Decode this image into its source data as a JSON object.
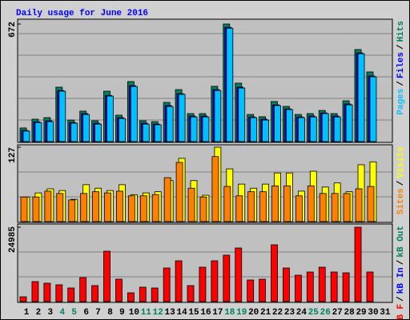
{
  "chart_data": {
    "type": "bar",
    "title": "Daily usage for June 2016",
    "legend_separator": "/",
    "categories": [
      "1",
      "2",
      "3",
      "4",
      "5",
      "6",
      "7",
      "8",
      "9",
      "10",
      "11",
      "12",
      "13",
      "14",
      "15",
      "16",
      "17",
      "18",
      "19",
      "20",
      "21",
      "22",
      "23",
      "24",
      "25",
      "26",
      "27",
      "28",
      "29",
      "30",
      "31"
    ],
    "category_colors": [
      "#000000",
      "#000000",
      "#000000",
      "#00805c",
      "#00805c",
      "#000000",
      "#000000",
      "#000000",
      "#000000",
      "#000000",
      "#00805c",
      "#00805c",
      "#000000",
      "#000000",
      "#000000",
      "#000000",
      "#000000",
      "#00805c",
      "#00805c",
      "#000000",
      "#000000",
      "#000000",
      "#000000",
      "#000000",
      "#00805c",
      "#00805c",
      "#000000",
      "#000000",
      "#000000",
      "#000000",
      "#000000"
    ],
    "panels": [
      {
        "ylim": [
          0,
          672
        ],
        "yticks": [
          672
        ],
        "series": [
          {
            "name": "Hits",
            "color": "#00805c",
            "values": [
              78,
              128,
              137,
              311,
              123,
              174,
              119,
              288,
              151,
              343,
              119,
              114,
              224,
              297,
              160,
              160,
              316,
              672,
              334,
              155,
              142,
              229,
              201,
              155,
              160,
              178,
              160,
              233,
              526,
              398,
              null
            ]
          },
          {
            "name": "Files",
            "color": "#0000ff",
            "values": [
              64,
              113,
              119,
              292,
              109,
              160,
              105,
              264,
              137,
              320,
              105,
              100,
              206,
              274,
              146,
              146,
              297,
              653,
              311,
              141,
              128,
              210,
              187,
              141,
              146,
              164,
              146,
              215,
              507,
              375,
              null
            ]
          },
          {
            "name": "Pages",
            "color": "#00c0ff",
            "values": [
              60,
              109,
              114,
              288,
              105,
              155,
              100,
              260,
              132,
              315,
              100,
              96,
              201,
              270,
              141,
              141,
              292,
              648,
              306,
              137,
              123,
              206,
              183,
              137,
              141,
              160,
              141,
              210,
              502,
              370,
              null
            ]
          }
        ]
      },
      {
        "ylim": [
          0,
          127
        ],
        "yticks": [
          127
        ],
        "series": [
          {
            "name": "Visits",
            "color": "#ffff00",
            "values": [
              42,
              49,
              56,
              53,
              38,
              63,
              57,
              53,
              63,
              46,
              49,
              51,
              70,
              108,
              70,
              45,
              127,
              90,
              64,
              57,
              64,
              83,
              83,
              52,
              86,
              59,
              66,
              51,
              97,
              102,
              null
            ]
          },
          {
            "name": "Sites",
            "color": "#ff8000",
            "values": [
              42,
              42,
              52,
              48,
              37,
              48,
              51,
              49,
              52,
              44,
              44,
              46,
              75,
              101,
              57,
              42,
              111,
              60,
              44,
              51,
              51,
              61,
              61,
              44,
              61,
              48,
              48,
              48,
              56,
              60,
              null
            ]
          }
        ]
      },
      {
        "ylim": [
          0,
          24985
        ],
        "yticks": [
          24985
        ],
        "series": [
          {
            "name": "kB Out",
            "color": "#00805c",
            "values": [
              null,
              null,
              null,
              null,
              null,
              null,
              null,
              null,
              null,
              null,
              null,
              null,
              null,
              null,
              null,
              null,
              null,
              null,
              null,
              null,
              null,
              null,
              null,
              null,
              null,
              null,
              null,
              null,
              null,
              null,
              null
            ]
          },
          {
            "name": "kB In",
            "color": "#0000ff",
            "values": [
              null,
              null,
              null,
              null,
              null,
              null,
              null,
              null,
              null,
              null,
              null,
              null,
              null,
              null,
              null,
              null,
              null,
              null,
              null,
              null,
              null,
              null,
              null,
              null,
              null,
              null,
              null,
              null,
              null,
              null,
              null
            ]
          },
          {
            "name": "kB F",
            "color": "#ff0000",
            "values": [
              1612,
              6717,
              6180,
              5642,
              4568,
              8060,
              5374,
              16927,
              7523,
              2955,
              4836,
              4568,
              11285,
              13703,
              5374,
              11553,
              13703,
              15584,
              18002,
              7254,
              7523,
              19077,
              11285,
              8866,
              9941,
              11553,
              9941,
              9672,
              24985,
              9941,
              null
            ]
          }
        ]
      }
    ]
  }
}
